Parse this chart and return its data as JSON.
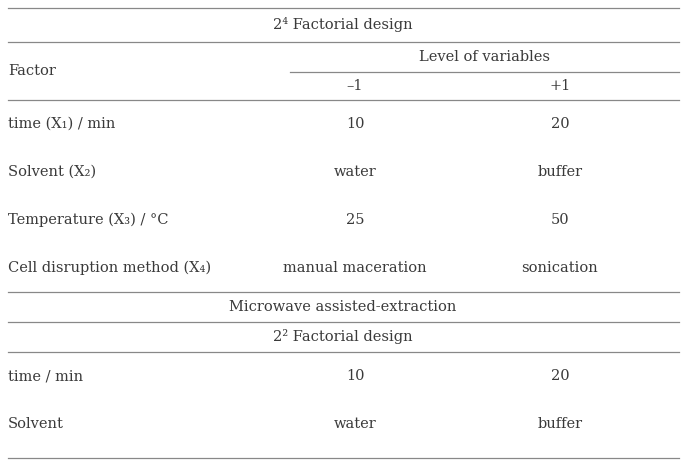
{
  "title_row": "2⁴ Factorial design",
  "header_span": "Level of variables",
  "col_minus": "–1",
  "col_plus": "+1",
  "factor_label": "Factor",
  "rows_section1": [
    [
      "time (X₁) / min",
      "10",
      "20"
    ],
    [
      "Solvent (X₂)",
      "water",
      "buffer"
    ],
    [
      "Temperature (X₃) / °C",
      "25",
      "50"
    ],
    [
      "Cell disruption method (X₄)",
      "manual maceration",
      "sonication"
    ]
  ],
  "section2_label": "Microwave assisted-extraction",
  "section3_label": "2² Factorial design",
  "rows_section2": [
    [
      "time / min",
      "10",
      "20"
    ],
    [
      "Solvent",
      "water",
      "buffer"
    ]
  ],
  "bg_color": "#ffffff",
  "text_color": "#3a3a3a",
  "line_color": "#888888",
  "font_size": 10.5,
  "font_family": "DejaVu Serif"
}
